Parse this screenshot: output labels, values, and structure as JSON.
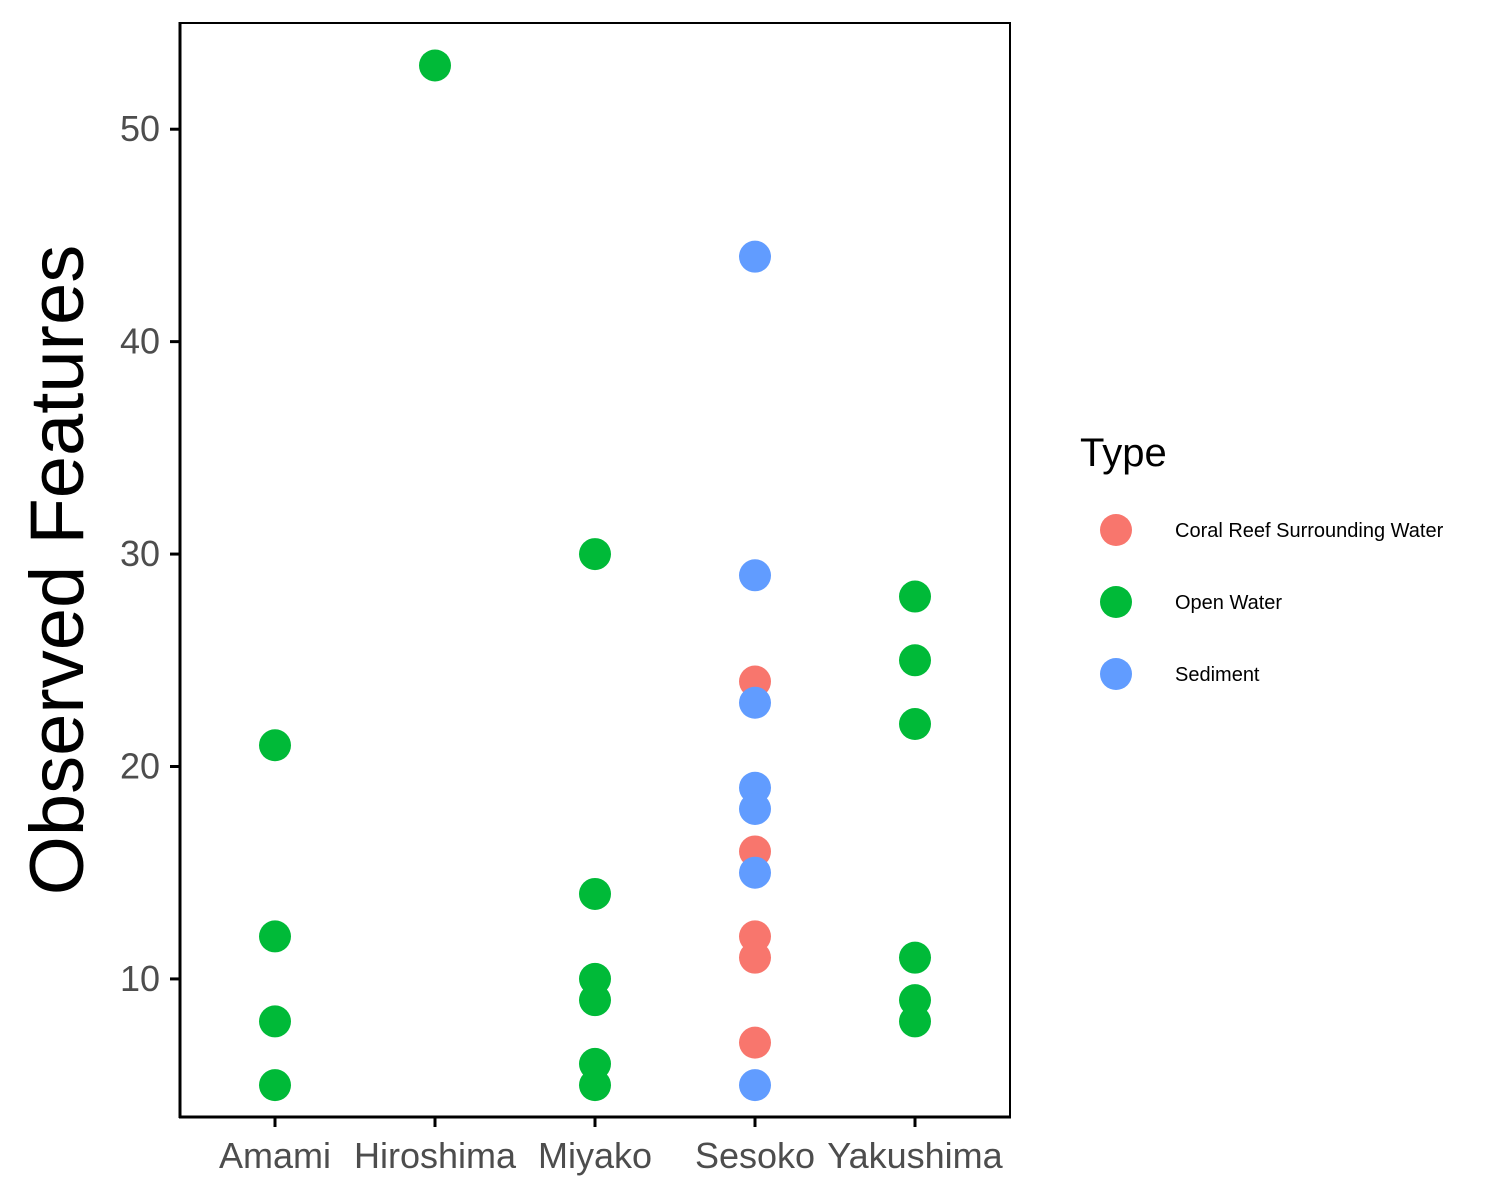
{
  "chart_data": {
    "type": "scatter",
    "categories": [
      "Amami",
      "Hiroshima",
      "Miyako",
      "Sesoko",
      "Yakushima"
    ],
    "ylabel": "Observed Features",
    "xlabel": "",
    "ylim": [
      3.5,
      55
    ],
    "yticks": [
      10,
      20,
      30,
      40,
      50
    ],
    "grid": false,
    "legend": {
      "title": "Type",
      "position": "right",
      "entries": [
        {
          "name": "Coral Reef Surrounding Water",
          "color": "#F8766D"
        },
        {
          "name": "Open Water",
          "color": "#00BA38"
        },
        {
          "name": "Sediment",
          "color": "#619CFF"
        }
      ]
    },
    "series": [
      {
        "name": "Coral Reef Surrounding Water",
        "color": "#F8766D",
        "points": [
          {
            "x": "Sesoko",
            "y": 24
          },
          {
            "x": "Sesoko",
            "y": 16
          },
          {
            "x": "Sesoko",
            "y": 12
          },
          {
            "x": "Sesoko",
            "y": 11
          },
          {
            "x": "Sesoko",
            "y": 7
          }
        ]
      },
      {
        "name": "Open Water",
        "color": "#00BA38",
        "points": [
          {
            "x": "Amami",
            "y": 21
          },
          {
            "x": "Amami",
            "y": 12
          },
          {
            "x": "Amami",
            "y": 8
          },
          {
            "x": "Amami",
            "y": 5
          },
          {
            "x": "Hiroshima",
            "y": 53
          },
          {
            "x": "Miyako",
            "y": 30
          },
          {
            "x": "Miyako",
            "y": 14
          },
          {
            "x": "Miyako",
            "y": 10
          },
          {
            "x": "Miyako",
            "y": 9
          },
          {
            "x": "Miyako",
            "y": 6
          },
          {
            "x": "Miyako",
            "y": 5
          },
          {
            "x": "Yakushima",
            "y": 28
          },
          {
            "x": "Yakushima",
            "y": 25
          },
          {
            "x": "Yakushima",
            "y": 22
          },
          {
            "x": "Yakushima",
            "y": 11
          },
          {
            "x": "Yakushima",
            "y": 9
          },
          {
            "x": "Yakushima",
            "y": 8
          }
        ]
      },
      {
        "name": "Sediment",
        "color": "#619CFF",
        "points": [
          {
            "x": "Sesoko",
            "y": 44
          },
          {
            "x": "Sesoko",
            "y": 29
          },
          {
            "x": "Sesoko",
            "y": 23
          },
          {
            "x": "Sesoko",
            "y": 19
          },
          {
            "x": "Sesoko",
            "y": 18
          },
          {
            "x": "Sesoko",
            "y": 15
          },
          {
            "x": "Sesoko",
            "y": 5
          }
        ]
      }
    ]
  }
}
